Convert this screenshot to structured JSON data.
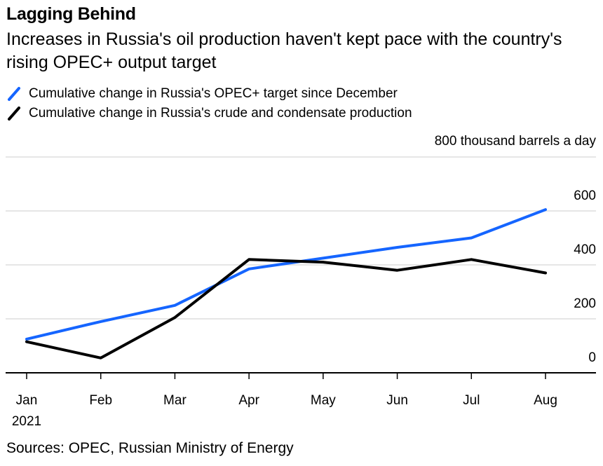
{
  "title": "Lagging Behind",
  "subtitle": "Increases in Russia's oil production haven't kept pace with the country's rising OPEC+ output target",
  "source": "Sources: OPEC, Russian Ministry of Energy",
  "colors": {
    "target": "#1565ff",
    "production": "#000000",
    "grid": "#e6e6e6",
    "axis": "#000000"
  },
  "chart_data": {
    "type": "line",
    "categories": [
      "Jan",
      "Feb",
      "Mar",
      "Apr",
      "May",
      "Jun",
      "Jul",
      "Aug"
    ],
    "year_label": "2021",
    "unit_label": "800 thousand barrels a day",
    "y_ticks": [
      "600",
      "400",
      "200",
      "0"
    ],
    "ylim": [
      0,
      800
    ],
    "grid": true,
    "legend_position": "top-left",
    "series": [
      {
        "name": "Cumulative change in Russia's OPEC+ target since December",
        "color": "#1565ff",
        "values": [
          125,
          190,
          250,
          385,
          425,
          465,
          500,
          605
        ]
      },
      {
        "name": "Cumulative change in Russia's crude and condensate production",
        "color": "#000000",
        "values": [
          115,
          55,
          205,
          420,
          410,
          380,
          420,
          370
        ]
      }
    ]
  }
}
